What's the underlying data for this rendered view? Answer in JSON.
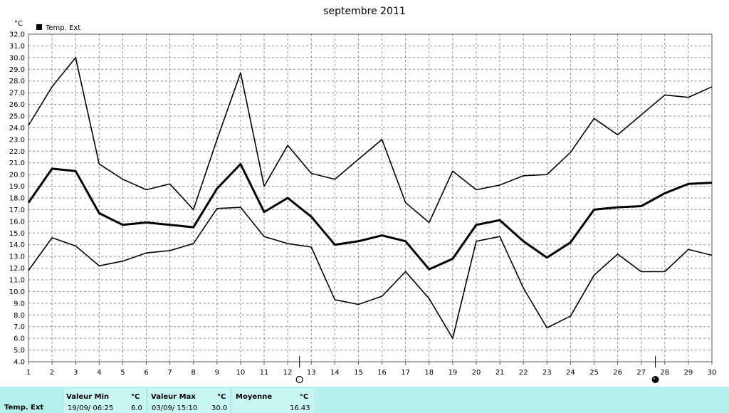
{
  "chart_data": {
    "type": "line",
    "title": "septembre 2011",
    "y_unit": "°C",
    "legend": "Temp. Ext",
    "ylim": [
      4.0,
      32.0
    ],
    "y_ticks": [
      "4.0",
      "5.0",
      "6.0",
      "7.0",
      "8.0",
      "9.0",
      "10.0",
      "11.0",
      "12.0",
      "13.0",
      "14.0",
      "15.0",
      "16.0",
      "17.0",
      "18.0",
      "19.0",
      "20.0",
      "21.0",
      "22.0",
      "23.0",
      "24.0",
      "25.0",
      "26.0",
      "27.0",
      "28.0",
      "29.0",
      "30.0",
      "31.0",
      "32.0"
    ],
    "x": [
      1,
      2,
      3,
      4,
      5,
      6,
      7,
      8,
      9,
      10,
      11,
      12,
      13,
      14,
      15,
      16,
      17,
      18,
      19,
      20,
      21,
      22,
      23,
      24,
      25,
      26,
      27,
      28,
      29,
      30
    ],
    "grid": true,
    "legend_position": "top-left",
    "series": [
      {
        "role": "max",
        "line": "thin",
        "values": [
          24.2,
          27.5,
          30.0,
          20.9,
          19.6,
          18.7,
          19.2,
          17.0,
          23.0,
          28.7,
          19.0,
          22.5,
          20.1,
          19.6,
          21.3,
          23.0,
          17.6,
          15.9,
          20.3,
          18.7,
          19.1,
          19.9,
          20.0,
          21.9,
          24.8,
          23.4,
          25.1,
          26.8,
          26.6,
          27.5
        ]
      },
      {
        "role": "mean",
        "line": "thick",
        "values": [
          17.6,
          20.5,
          20.3,
          16.7,
          15.7,
          15.9,
          15.7,
          15.5,
          18.8,
          20.9,
          16.8,
          18.0,
          16.4,
          14.0,
          14.3,
          14.8,
          14.3,
          11.9,
          12.8,
          15.7,
          16.1,
          14.3,
          12.9,
          14.2,
          17.0,
          17.2,
          17.3,
          18.4,
          19.2,
          19.3
        ]
      },
      {
        "role": "min",
        "line": "thin",
        "values": [
          11.8,
          14.6,
          13.9,
          12.2,
          12.6,
          13.3,
          13.5,
          14.1,
          17.1,
          17.2,
          14.7,
          14.1,
          13.8,
          9.3,
          8.9,
          9.6,
          11.7,
          9.4,
          6.0,
          14.3,
          14.7,
          10.3,
          6.9,
          7.9,
          11.4,
          13.2,
          11.7,
          11.7,
          13.6,
          13.1
        ]
      }
    ],
    "moon_markers": [
      {
        "day": 12.5,
        "phase": "full-moon"
      },
      {
        "day": 27.6,
        "phase": "new-moon"
      }
    ]
  },
  "stats": {
    "series_label": "Temp. Ext",
    "min": {
      "header": "Valeur Min",
      "unit": "°C",
      "datetime": "19/09/  06:25",
      "value": "6.0"
    },
    "max": {
      "header": "Valeur Max",
      "unit": "°C",
      "datetime": "03/09/  15:10",
      "value": "30.0"
    },
    "avg": {
      "header": "Moyenne",
      "unit": "°C",
      "value": "16.43"
    }
  }
}
